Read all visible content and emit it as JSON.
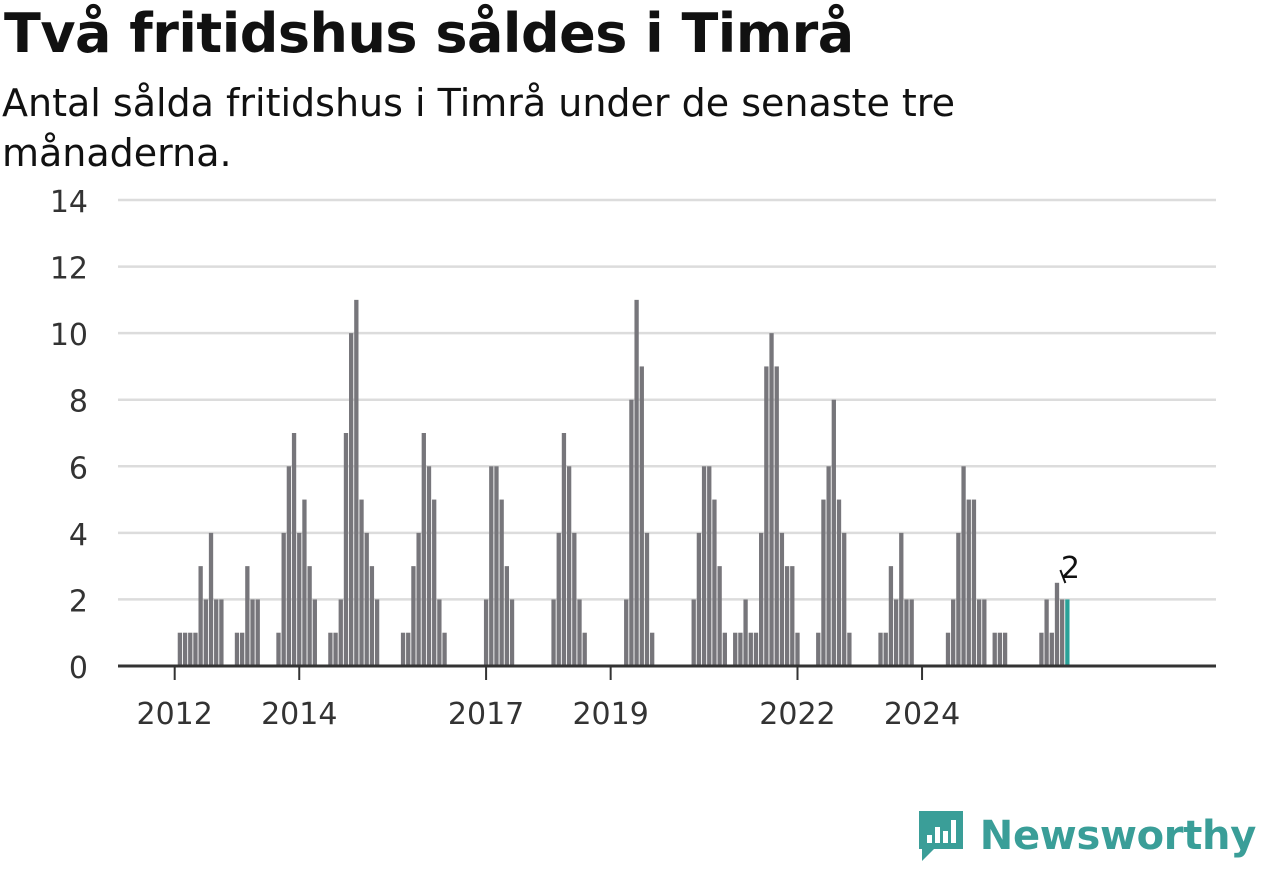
{
  "header": {
    "title": "Två fritidshus såldes i Timrå",
    "subtitle": "Antal sålda fritidshus i Timrå under de senaste tre månaderna."
  },
  "brand": {
    "name": "Newsworthy",
    "color": "#3a9e98"
  },
  "chart_data": {
    "type": "bar",
    "title": "Två fritidshus såldes i Timrå",
    "subtitle": "Antal sålda fritidshus i Timrå under de senaste tre månaderna.",
    "xlabel": "",
    "ylabel": "",
    "ylim": [
      0,
      14
    ],
    "yticks": [
      0,
      2,
      4,
      6,
      8,
      10,
      12,
      14
    ],
    "grid": true,
    "start": "2011-12",
    "x_tick_labels": [
      {
        "label": "2012",
        "month": "2012-01"
      },
      {
        "label": "2014",
        "month": "2014-01"
      },
      {
        "label": "2017",
        "month": "2017-01"
      },
      {
        "label": "2019",
        "month": "2019-01"
      },
      {
        "label": "2022",
        "month": "2022-01"
      },
      {
        "label": "2024",
        "month": "2024-01"
      }
    ],
    "bar_color": "#77767b",
    "highlight_color": "#2aa198",
    "highlight_label": "2",
    "values": [
      0,
      0,
      1,
      1,
      1,
      1,
      3,
      2,
      4,
      2,
      2,
      0,
      0,
      1,
      1,
      3,
      2,
      2,
      0,
      0,
      0,
      1,
      4,
      6,
      7,
      4,
      5,
      3,
      2,
      0,
      0,
      1,
      1,
      2,
      7,
      10,
      11,
      5,
      4,
      3,
      2,
      0,
      0,
      0,
      0,
      1,
      1,
      3,
      4,
      7,
      6,
      5,
      2,
      1,
      0,
      0,
      0,
      0,
      0,
      0,
      0,
      2,
      6,
      6,
      5,
      3,
      2,
      0,
      0,
      0,
      0,
      0,
      0,
      0,
      2,
      4,
      7,
      6,
      4,
      2,
      1,
      0,
      0,
      0,
      0,
      0,
      0,
      0,
      2,
      8,
      11,
      9,
      4,
      1,
      0,
      0,
      0,
      0,
      0,
      0,
      0,
      2,
      4,
      6,
      6,
      5,
      3,
      1,
      0,
      1,
      1,
      2,
      1,
      1,
      4,
      9,
      10,
      9,
      4,
      3,
      3,
      1,
      0,
      0,
      0,
      1,
      5,
      6,
      8,
      5,
      4,
      1,
      0,
      0,
      0,
      0,
      0,
      1,
      1,
      3,
      2,
      4,
      2,
      2,
      0,
      0,
      0,
      0,
      0,
      0,
      1,
      2,
      4,
      6,
      5,
      5,
      2,
      2,
      0,
      1,
      1,
      1,
      0,
      0,
      0,
      0,
      0,
      0,
      1,
      2,
      1,
      2.5,
      2,
      2
    ]
  }
}
